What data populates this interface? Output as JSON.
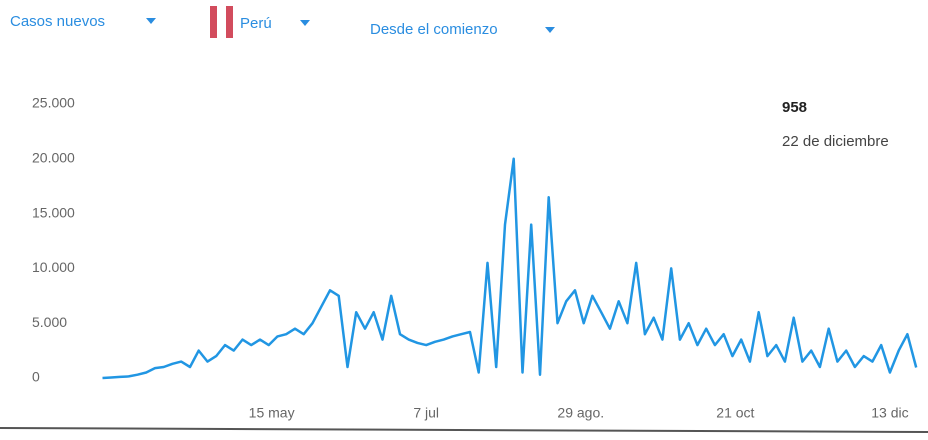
{
  "controls": {
    "metric": "Casos nuevos",
    "country": "Perú",
    "period": "Desde el comienzo"
  },
  "chart_data": {
    "type": "line",
    "annotation": {
      "value": "958",
      "date": "22 de diciembre"
    },
    "x": [
      78,
      81,
      84,
      87,
      90,
      93,
      96,
      99,
      102,
      105,
      108,
      111,
      114,
      117,
      120,
      123,
      126,
      129,
      132,
      135,
      138,
      141,
      144,
      147,
      150,
      153,
      156,
      159,
      162,
      165,
      168,
      171,
      174,
      177,
      180,
      183,
      186,
      189,
      192,
      195,
      198,
      201,
      204,
      207,
      210,
      213,
      216,
      219,
      222,
      225,
      228,
      231,
      234,
      237,
      240,
      243,
      246,
      249,
      252,
      255,
      258,
      261,
      264,
      267,
      270,
      273,
      276,
      279,
      282,
      285,
      288,
      291,
      294,
      297,
      300,
      303,
      306,
      309,
      312,
      315,
      318,
      321,
      324,
      327,
      330,
      333,
      336,
      339,
      342,
      345,
      348,
      351,
      354,
      357
    ],
    "series": [
      {
        "name": "Casos nuevos",
        "color": "#2196e3",
        "values": [
          0,
          50,
          100,
          150,
          300,
          500,
          900,
          1000,
          1300,
          1500,
          1000,
          2500,
          1500,
          2000,
          3000,
          2500,
          3500,
          3000,
          3500,
          3000,
          3800,
          4000,
          4500,
          4000,
          5000,
          6500,
          8000,
          7500,
          1000,
          6000,
          4500,
          6000,
          3500,
          7500,
          4000,
          3500,
          3200,
          3000,
          3300,
          3500,
          3800,
          4000,
          4200,
          500,
          10500,
          1000,
          14000,
          20000,
          500,
          14000,
          300,
          16500,
          5000,
          7000,
          8000,
          5000,
          7500,
          6000,
          4500,
          7000,
          5000,
          10500,
          4000,
          5500,
          3500,
          10000,
          3500,
          5000,
          3000,
          4500,
          3000,
          4000,
          2000,
          3500,
          1500,
          6000,
          2000,
          3000,
          1500,
          5500,
          1500,
          2500,
          1000,
          4500,
          1500,
          2500,
          1000,
          2000,
          1500,
          3000,
          500,
          2500,
          4000,
          958
        ]
      }
    ],
    "xlim": [
      72,
      359
    ],
    "xticks": [
      {
        "value": 136,
        "label": "15 may"
      },
      {
        "value": 189,
        "label": "7 jul"
      },
      {
        "value": 242,
        "label": "29 ago."
      },
      {
        "value": 295,
        "label": "21 oct"
      },
      {
        "value": 348,
        "label": "13 dic"
      }
    ],
    "ylim": [
      0,
      25000
    ],
    "yticks": [
      0,
      {
        "value": 5000,
        "label": "5.000"
      },
      {
        "value": 10000,
        "label": "10.000"
      },
      {
        "value": 15000,
        "label": "15.000"
      },
      {
        "value": 20000,
        "label": "20.000"
      },
      {
        "value": 25000,
        "label": "25.000"
      }
    ],
    "grid": false
  }
}
